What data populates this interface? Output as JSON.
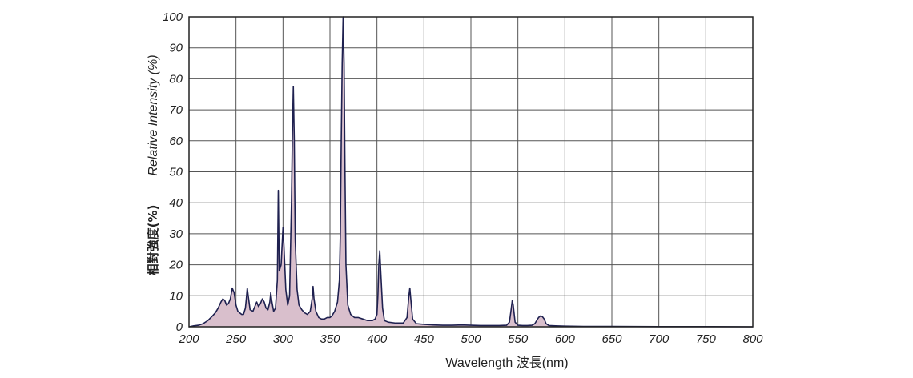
{
  "chart_data": {
    "type": "area",
    "xlabel": "Wavelength 波長(nm)",
    "ylabel": "Relative Intensity (%)",
    "ylabel_cjk": "相對強度(%)",
    "xlim": [
      200,
      800
    ],
    "ylim": [
      0,
      100
    ],
    "x_ticks": [
      200,
      250,
      300,
      350,
      400,
      450,
      500,
      550,
      600,
      650,
      700,
      750,
      800
    ],
    "y_ticks": [
      0,
      10,
      20,
      30,
      40,
      50,
      60,
      70,
      80,
      90,
      100
    ],
    "grid": true,
    "colors": {
      "line": "#1f2150",
      "fill": "#d9bfcc",
      "grid": "#555555",
      "frame": "#222222"
    },
    "series": [
      {
        "values": [
          [
            200,
            0
          ],
          [
            205,
            0.3
          ],
          [
            210,
            0.5
          ],
          [
            215,
            1
          ],
          [
            220,
            2
          ],
          [
            225,
            3.5
          ],
          [
            228,
            4.5
          ],
          [
            231,
            6
          ],
          [
            234,
            8
          ],
          [
            236,
            9
          ],
          [
            238,
            8.5
          ],
          [
            240,
            7
          ],
          [
            242,
            7.5
          ],
          [
            244,
            9
          ],
          [
            246,
            12.5
          ],
          [
            248,
            11
          ],
          [
            250,
            7
          ],
          [
            252,
            5
          ],
          [
            254,
            4.5
          ],
          [
            256,
            4
          ],
          [
            258,
            4
          ],
          [
            260,
            6
          ],
          [
            261,
            9
          ],
          [
            262,
            12.5
          ],
          [
            263,
            10
          ],
          [
            265,
            5.5
          ],
          [
            268,
            5
          ],
          [
            270,
            6.5
          ],
          [
            272,
            8
          ],
          [
            274,
            6.5
          ],
          [
            276,
            7.5
          ],
          [
            278,
            9
          ],
          [
            280,
            8
          ],
          [
            282,
            6
          ],
          [
            284,
            5.5
          ],
          [
            286,
            8
          ],
          [
            287,
            11
          ],
          [
            288,
            8.5
          ],
          [
            290,
            5
          ],
          [
            292,
            6
          ],
          [
            294,
            15
          ],
          [
            295,
            44
          ],
          [
            296,
            18
          ],
          [
            298,
            20
          ],
          [
            300,
            32
          ],
          [
            301,
            26
          ],
          [
            303,
            12
          ],
          [
            305,
            7
          ],
          [
            307,
            10
          ],
          [
            309,
            40
          ],
          [
            310,
            62
          ],
          [
            311,
            77.5
          ],
          [
            312,
            60
          ],
          [
            313,
            28
          ],
          [
            315,
            12
          ],
          [
            317,
            7
          ],
          [
            320,
            5.5
          ],
          [
            323,
            4.5
          ],
          [
            326,
            4
          ],
          [
            329,
            5
          ],
          [
            331,
            9
          ],
          [
            332,
            13
          ],
          [
            333,
            9
          ],
          [
            335,
            5
          ],
          [
            338,
            3
          ],
          [
            341,
            2.5
          ],
          [
            344,
            2.5
          ],
          [
            347,
            3
          ],
          [
            350,
            3
          ],
          [
            352,
            3.5
          ],
          [
            355,
            5
          ],
          [
            358,
            8
          ],
          [
            360,
            15
          ],
          [
            361,
            30
          ],
          [
            362,
            60
          ],
          [
            363,
            85
          ],
          [
            364,
            100
          ],
          [
            365,
            85
          ],
          [
            366,
            50
          ],
          [
            367,
            20
          ],
          [
            369,
            7
          ],
          [
            372,
            4
          ],
          [
            376,
            3
          ],
          [
            380,
            3
          ],
          [
            385,
            2.5
          ],
          [
            390,
            2
          ],
          [
            395,
            2
          ],
          [
            398,
            2.5
          ],
          [
            400,
            4
          ],
          [
            401,
            10
          ],
          [
            402,
            20
          ],
          [
            403,
            24.5
          ],
          [
            404,
            18
          ],
          [
            406,
            6
          ],
          [
            408,
            2
          ],
          [
            412,
            1.5
          ],
          [
            420,
            1.2
          ],
          [
            428,
            1.2
          ],
          [
            432,
            3
          ],
          [
            434,
            10
          ],
          [
            435,
            12.5
          ],
          [
            436,
            9
          ],
          [
            438,
            2.5
          ],
          [
            442,
            1
          ],
          [
            450,
            0.8
          ],
          [
            460,
            0.6
          ],
          [
            470,
            0.5
          ],
          [
            480,
            0.5
          ],
          [
            490,
            0.6
          ],
          [
            500,
            0.5
          ],
          [
            510,
            0.4
          ],
          [
            520,
            0.4
          ],
          [
            530,
            0.4
          ],
          [
            538,
            0.5
          ],
          [
            541,
            1.5
          ],
          [
            543,
            6
          ],
          [
            544,
            8.5
          ],
          [
            545,
            7
          ],
          [
            547,
            1.5
          ],
          [
            550,
            0.5
          ],
          [
            555,
            0.4
          ],
          [
            560,
            0.4
          ],
          [
            565,
            0.5
          ],
          [
            568,
            1
          ],
          [
            570,
            2
          ],
          [
            572,
            3
          ],
          [
            574,
            3.5
          ],
          [
            576,
            3.3
          ],
          [
            578,
            2.5
          ],
          [
            580,
            1
          ],
          [
            583,
            0.4
          ],
          [
            590,
            0.3
          ],
          [
            600,
            0.2
          ],
          [
            620,
            0.1
          ],
          [
            650,
            0.1
          ],
          [
            700,
            0.05
          ],
          [
            750,
            0.05
          ],
          [
            800,
            0
          ]
        ]
      }
    ]
  }
}
